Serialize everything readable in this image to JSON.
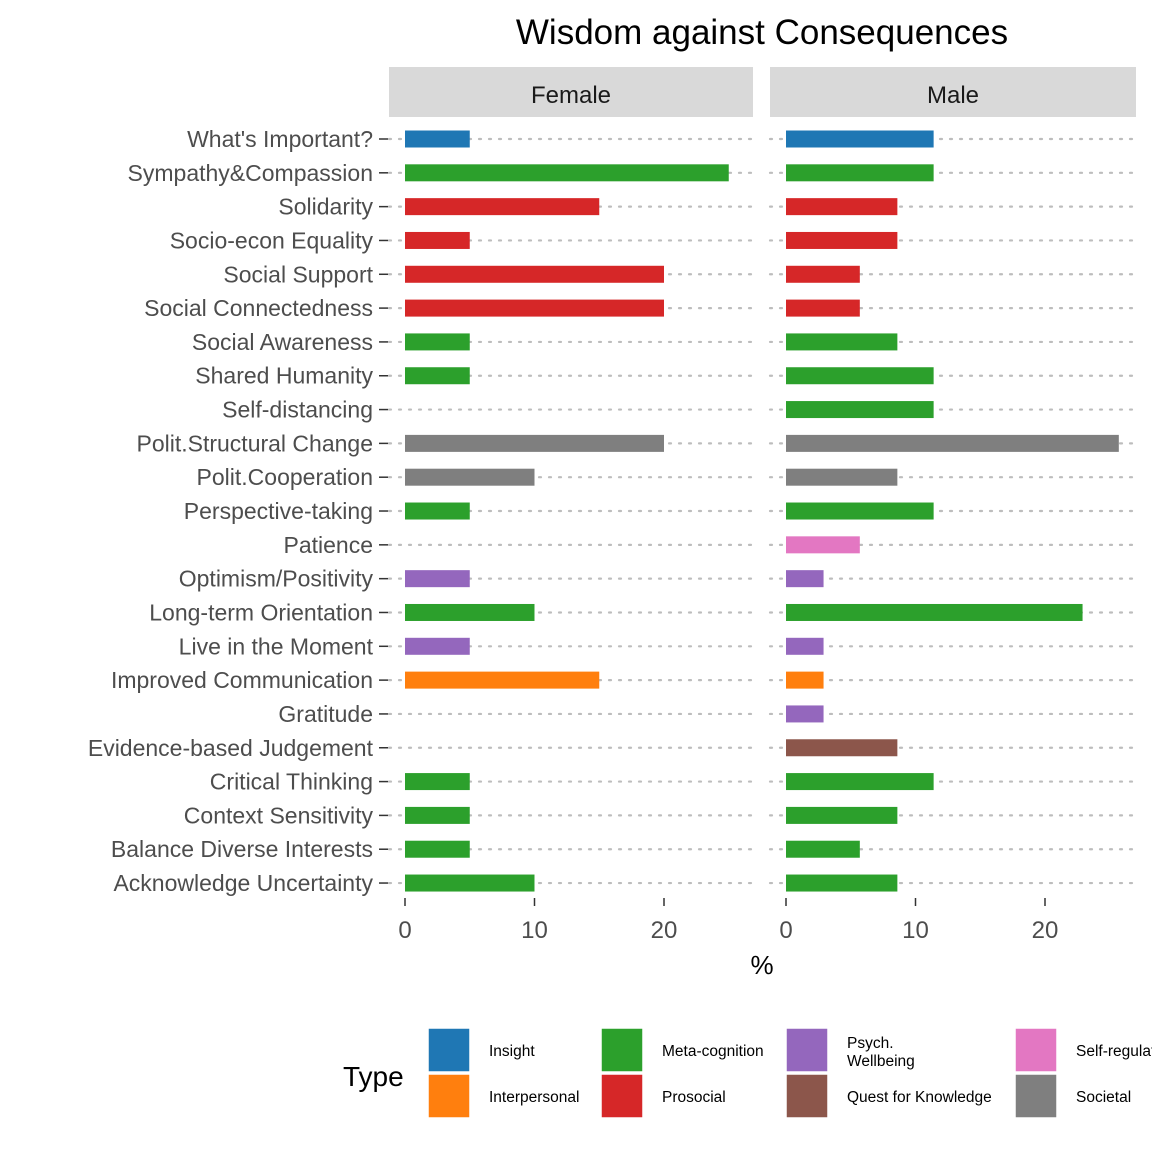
{
  "chart_data": {
    "type": "bar",
    "title": "Wisdom against Consequences",
    "xlabel": "%",
    "ylabel": "",
    "orientation": "horizontal",
    "facets": [
      "Female",
      "Male"
    ],
    "xlim": [
      0,
      27
    ],
    "xticks": [
      "0",
      "10",
      "20"
    ],
    "grid": "dotted horizontal",
    "legend_title": "Type",
    "legend_position": "bottom",
    "legend": [
      {
        "name": "Insight",
        "color": "#1f77b4"
      },
      {
        "name": "Interpersonal",
        "color": "#ff7f0e"
      },
      {
        "name": "Meta-cognition",
        "color": "#2ca02c"
      },
      {
        "name": "Prosocial",
        "color": "#d62728"
      },
      {
        "name": "Psych. Wellbeing",
        "color": "#9467bd"
      },
      {
        "name": "Quest for Knowledge",
        "color": "#8c564b"
      },
      {
        "name": "Self-regulation",
        "color": "#e377c2"
      },
      {
        "name": "Societal",
        "color": "#7f7f7f"
      }
    ],
    "categories": [
      "What's Important?",
      "Sympathy&Compassion",
      "Solidarity",
      "Socio-econ Equality",
      "Social Support",
      "Social Connectedness",
      "Social Awareness",
      "Shared Humanity",
      "Self-distancing",
      "Polit.Structural Change",
      "Polit.Cooperation",
      "Perspective-taking",
      "Patience",
      "Optimism/Positivity",
      "Long-term Orientation",
      "Live in the Moment",
      "Improved Communication",
      "Gratitude",
      "Evidence-based Judgement",
      "Critical Thinking",
      "Context Sensitivity",
      "Balance Diverse Interests",
      "Acknowledge Uncertainty"
    ],
    "types": [
      "Insight",
      "Meta-cognition",
      "Prosocial",
      "Prosocial",
      "Prosocial",
      "Prosocial",
      "Meta-cognition",
      "Meta-cognition",
      "Meta-cognition",
      "Societal",
      "Societal",
      "Meta-cognition",
      "Self-regulation",
      "Psych. Wellbeing",
      "Meta-cognition",
      "Psych. Wellbeing",
      "Interpersonal",
      "Psych. Wellbeing",
      "Quest for Knowledge",
      "Meta-cognition",
      "Meta-cognition",
      "Meta-cognition",
      "Meta-cognition"
    ],
    "series": [
      {
        "name": "Female",
        "values": [
          5,
          25,
          15,
          5,
          20,
          20,
          5,
          5,
          0,
          20,
          10,
          5,
          0,
          5,
          10,
          5,
          15,
          0,
          0,
          5,
          5,
          5,
          10
        ]
      },
      {
        "name": "Male",
        "values": [
          11.4,
          11.4,
          8.6,
          8.6,
          5.7,
          5.7,
          8.6,
          11.4,
          11.4,
          25.7,
          8.6,
          11.4,
          5.7,
          2.9,
          22.9,
          2.9,
          2.9,
          2.9,
          8.6,
          11.4,
          8.6,
          5.7,
          8.6
        ]
      }
    ]
  }
}
